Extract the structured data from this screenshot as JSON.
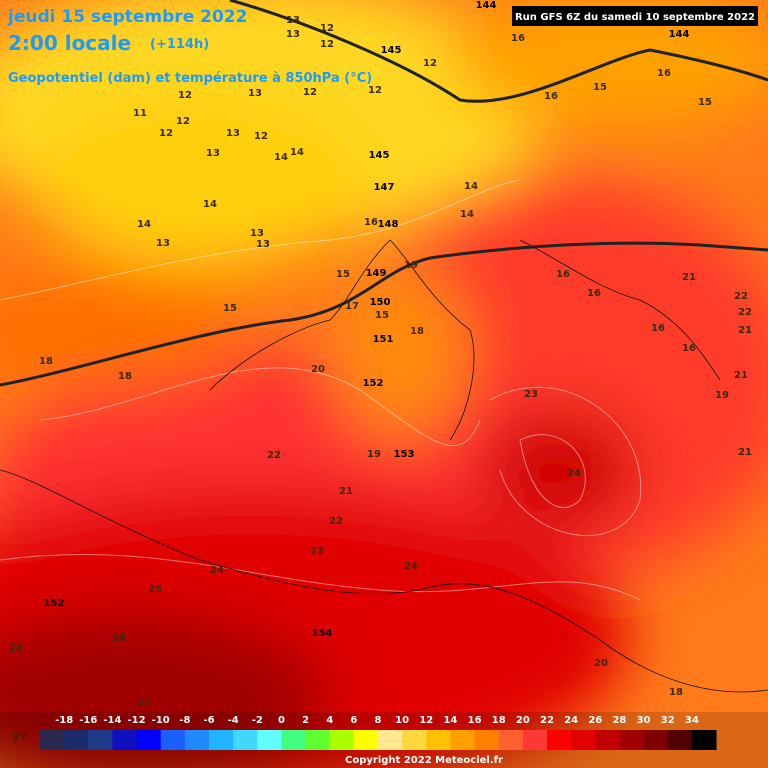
{
  "header": {
    "date": "jeudi 15 septembre 2022",
    "time": "2:00 locale",
    "lead": "(+114h)",
    "subtitle": "Geopotentiel (dam) et température à 850hPa (°C)",
    "run": "Run GFS 6Z du samedi 10 septembre 2022"
  },
  "temperature_labels": [
    13,
    12,
    13,
    12,
    12,
    16,
    16,
    15,
    15,
    16,
    12,
    12,
    13,
    12,
    11,
    12,
    12,
    13,
    12,
    13,
    14,
    14,
    13,
    14,
    14,
    13,
    13,
    14,
    14,
    16,
    19,
    15,
    15,
    17,
    15,
    18,
    16,
    16,
    21,
    22,
    22,
    21,
    16,
    16,
    21,
    19,
    21,
    18,
    18,
    20,
    23,
    19,
    22,
    21,
    24,
    22,
    23,
    24,
    24,
    25,
    26,
    24,
    27,
    27,
    20,
    18
  ],
  "geopotential_labels": [
    145,
    145,
    147,
    148,
    149,
    150,
    151,
    152,
    153,
    152,
    154,
    144,
    144
  ],
  "legend": {
    "ticks": [
      -18,
      -16,
      -14,
      -12,
      -10,
      -8,
      -6,
      -4,
      -2,
      0,
      2,
      4,
      6,
      8,
      10,
      12,
      14,
      16,
      18,
      20,
      22,
      24,
      26,
      28,
      30,
      32,
      34
    ],
    "colors": [
      "#2a2a50",
      "#1a2c6b",
      "#203a8c",
      "#1010c0",
      "#0000ff",
      "#1b5fff",
      "#2088ff",
      "#1fb4ff",
      "#40d8ff",
      "#60ffff",
      "#40ff80",
      "#60ff30",
      "#a8ff00",
      "#ffff00",
      "#ffe890",
      "#ffd840",
      "#ffc000",
      "#ffa000",
      "#ff8000",
      "#ff6030",
      "#ff3838",
      "#ff0000",
      "#e00000",
      "#c00000",
      "#a00000",
      "#800000",
      "#500000",
      "#000000"
    ]
  },
  "copyright": "Copyright 2022 Meteociel.fr"
}
